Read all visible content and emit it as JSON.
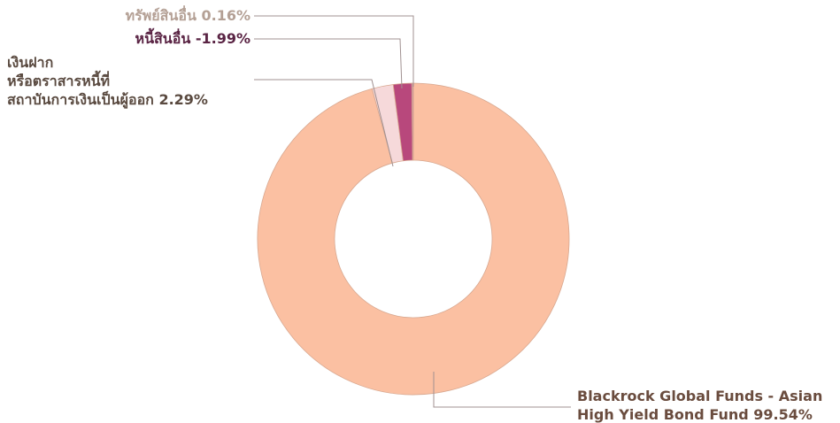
{
  "chart_data": {
    "type": "pie",
    "categories": [
      "Blackrock Global Funds - Asian\nHigh Yield Bond Fund",
      "เงินฝาก\nหรือตราสารหนี้ที่\nสถาบันการเงินเป็นผู้ออก",
      "หนี้สินอื่น",
      "ทรัพย์สินอื่น"
    ],
    "values": [
      99.54,
      2.29,
      -1.99,
      0.16
    ],
    "value_labels": [
      "99.54%",
      "2.29%",
      "-1.99%",
      "0.16%"
    ],
    "colors": [
      "#fbc0a2",
      "#f6d9da",
      "#b8487c",
      "#c98d9c"
    ],
    "donut": true
  }
}
